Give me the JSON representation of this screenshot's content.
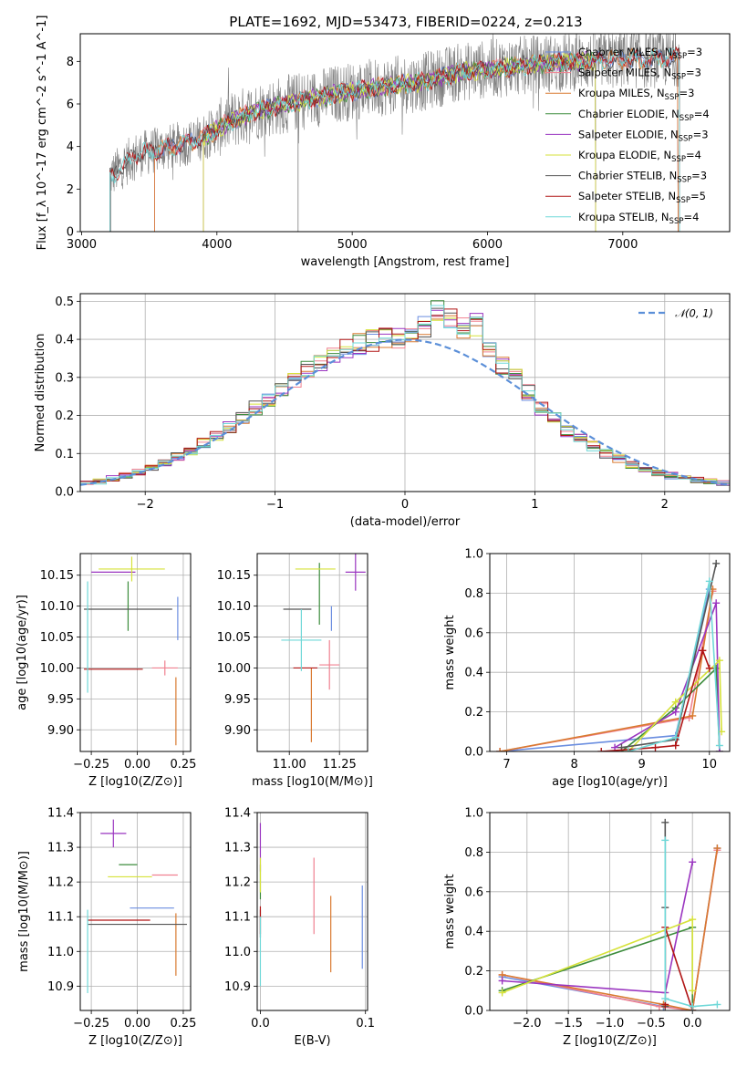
{
  "figure": {
    "title": "PLATE=1692, MJD=53473, FIBERID=0224, z=0.213"
  },
  "colors": {
    "Chabrier MILES": "#6b8ee0",
    "Salpeter MILES": "#f08090",
    "Kroupa MILES": "#d97a30",
    "Chabrier ELODIE": "#3c8c3c",
    "Salpeter ELODIE": "#9a35c0",
    "Kroupa ELODIE": "#d6e23a",
    "Chabrier STELIB": "#555555",
    "Salpeter STELIB": "#b01515",
    "Kroupa STELIB": "#6fd8d8",
    "normal": "#5b8fd8",
    "data": "#7f7f7f"
  },
  "chart_data": [
    {
      "id": "spectrum",
      "type": "line",
      "title": "PLATE=1692, MJD=53473, FIBERID=0224, z=0.213",
      "xlabel": "wavelength [Angstrom, rest frame]",
      "ylabel": "Flux [f_λ 10^-17 erg cm^-2 s^-1 A^-1]",
      "xlim": [
        2990,
        7790
      ],
      "ylim": [
        0,
        9.3
      ],
      "xticks": [
        3000,
        4000,
        5000,
        6000,
        7000
      ],
      "yticks": [
        0,
        2,
        4,
        6,
        8
      ],
      "grid": false,
      "legend_position": "right",
      "series": [
        {
          "name": "Chabrier MILES, N_SSP=3",
          "sub": "SSP",
          "pre": "Chabrier MILES, N",
          "post": "=3"
        },
        {
          "name": "Salpeter MILES, N_SSP=3",
          "sub": "SSP",
          "pre": "Salpeter MILES, N",
          "post": "=3"
        },
        {
          "name": "Kroupa MILES, N_SSP=3",
          "sub": "SSP",
          "pre": "Kroupa MILES, N",
          "post": "=3"
        },
        {
          "name": "Chabrier ELODIE, N_SSP=4",
          "sub": "SSP",
          "pre": "Chabrier ELODIE, N",
          "post": "=4"
        },
        {
          "name": "Salpeter ELODIE, N_SSP=3",
          "sub": "SSP",
          "pre": "Salpeter ELODIE, N",
          "post": "=3"
        },
        {
          "name": "Kroupa ELODIE, N_SSP=4",
          "sub": "SSP",
          "pre": "Kroupa ELODIE, N",
          "post": "=4"
        },
        {
          "name": "Chabrier STELIB, N_SSP=3",
          "sub": "SSP",
          "pre": "Chabrier STELIB, N",
          "post": "=3"
        },
        {
          "name": "Salpeter STELIB, N_SSP=5",
          "sub": "SSP",
          "pre": "Salpeter STELIB, N",
          "post": "=5"
        },
        {
          "name": "Kroupa STELIB, N_SSP=4",
          "sub": "SSP",
          "pre": "Kroupa STELIB, N",
          "post": "=4"
        }
      ],
      "continuum": [
        [
          3210,
          2.6
        ],
        [
          3400,
          3.6
        ],
        [
          3600,
          3.9
        ],
        [
          3800,
          4.2
        ],
        [
          3950,
          4.6
        ],
        [
          4100,
          5.2
        ],
        [
          4300,
          5.7
        ],
        [
          4600,
          6.1
        ],
        [
          4900,
          6.5
        ],
        [
          5200,
          6.8
        ],
        [
          5500,
          7.0
        ],
        [
          5800,
          7.5
        ],
        [
          6100,
          7.7
        ],
        [
          6400,
          7.9
        ],
        [
          6700,
          8.0
        ],
        [
          7000,
          8.1
        ],
        [
          7200,
          8.1
        ],
        [
          7400,
          8.2
        ]
      ]
    },
    {
      "id": "residuals",
      "type": "step",
      "xlabel": "(data-model)/error",
      "ylabel": "Normed distribution",
      "xlim": [
        -2.5,
        2.5
      ],
      "ylim": [
        0,
        0.52
      ],
      "xticks": [
        -2,
        -1,
        0,
        1,
        2
      ],
      "yticks": [
        0.0,
        0.1,
        0.2,
        0.3,
        0.4,
        0.5
      ],
      "grid": true,
      "legend": "𝒩(0, 1)",
      "legend_position": "top-right",
      "bins": [
        -2.5,
        -2.4,
        -2.3,
        -2.2,
        -2.1,
        -2.0,
        -1.9,
        -1.8,
        -1.7,
        -1.6,
        -1.5,
        -1.4,
        -1.3,
        -1.2,
        -1.1,
        -1.0,
        -0.9,
        -0.8,
        -0.7,
        -0.6,
        -0.5,
        -0.4,
        -0.3,
        -0.2,
        -0.1,
        0.0,
        0.1,
        0.2,
        0.3,
        0.4,
        0.5,
        0.6,
        0.7,
        0.8,
        0.9,
        1.0,
        1.1,
        1.2,
        1.3,
        1.4,
        1.5,
        1.6,
        1.7,
        1.8,
        1.9,
        2.0,
        2.1,
        2.2,
        2.3,
        2.4
      ],
      "histogram": [
        0.022,
        0.028,
        0.034,
        0.042,
        0.052,
        0.062,
        0.075,
        0.092,
        0.108,
        0.128,
        0.148,
        0.17,
        0.196,
        0.22,
        0.244,
        0.27,
        0.296,
        0.318,
        0.34,
        0.36,
        0.375,
        0.388,
        0.396,
        0.402,
        0.405,
        0.4,
        0.43,
        0.47,
        0.46,
        0.43,
        0.44,
        0.38,
        0.33,
        0.3,
        0.26,
        0.22,
        0.19,
        0.16,
        0.14,
        0.12,
        0.1,
        0.085,
        0.07,
        0.058,
        0.05,
        0.042,
        0.036,
        0.03,
        0.026,
        0.022
      ]
    },
    {
      "id": "age-vs-Z",
      "type": "errorbar",
      "xlabel": "Z [log10(Z/Z⊙)]",
      "ylabel": "age [log10(age/yr)]",
      "xlim": [
        -0.31,
        0.29
      ],
      "ylim": [
        9.865,
        10.185
      ],
      "xticks": [
        -0.25,
        0.0,
        0.25
      ],
      "yticks": [
        9.9,
        9.95,
        10.0,
        10.05,
        10.1,
        10.15
      ],
      "grid": true,
      "points": [
        {
          "model": "Chabrier MILES",
          "x": 0.22,
          "xerr": 0.0,
          "y": 10.08,
          "yerr": 0.035
        },
        {
          "model": "Salpeter MILES",
          "x": 0.15,
          "xerr": 0.07,
          "y": 10.0,
          "yerr": 0.012
        },
        {
          "model": "Kroupa MILES",
          "x": 0.21,
          "xerr": 0.0,
          "y": 9.93,
          "yerr": 0.055
        },
        {
          "model": "Chabrier ELODIE",
          "x": -0.05,
          "xerr": 0.0,
          "y": 10.1,
          "yerr": 0.04
        },
        {
          "model": "Salpeter ELODIE",
          "x": -0.13,
          "xerr": 0.12,
          "y": 10.155,
          "yerr": 0.0
        },
        {
          "model": "Kroupa ELODIE",
          "x": -0.03,
          "xerr": 0.18,
          "y": 10.16,
          "yerr": 0.02
        },
        {
          "model": "Chabrier STELIB",
          "x": -0.05,
          "xerr": 0.24,
          "y": 10.095,
          "yerr": 0.0
        },
        {
          "model": "Salpeter STELIB",
          "x": -0.13,
          "xerr": 0.16,
          "y": 9.998,
          "yerr": 0.0
        },
        {
          "model": "Kroupa STELIB",
          "x": -0.27,
          "xerr": 0.0,
          "y": 10.05,
          "yerr": 0.09
        }
      ]
    },
    {
      "id": "age-vs-mass",
      "type": "errorbar",
      "xlabel": "mass [log10(M/M⊙)]",
      "xlim": [
        10.84,
        11.39
      ],
      "ylim": [
        9.865,
        10.185
      ],
      "xticks": [
        11.0,
        11.25
      ],
      "yticks": [
        9.9,
        9.95,
        10.0,
        10.05,
        10.1,
        10.15
      ],
      "grid": true,
      "points": [
        {
          "model": "Chabrier MILES",
          "x": 11.21,
          "xerr": 0.0,
          "y": 10.08,
          "yerr": 0.02
        },
        {
          "model": "Salpeter MILES",
          "x": 11.2,
          "xerr": 0.05,
          "y": 10.005,
          "yerr": 0.04
        },
        {
          "model": "Kroupa MILES",
          "x": 11.11,
          "xerr": 0.0,
          "y": 9.94,
          "yerr": 0.06
        },
        {
          "model": "Chabrier ELODIE",
          "x": 11.15,
          "xerr": 0.0,
          "y": 10.12,
          "yerr": 0.05
        },
        {
          "model": "Salpeter ELODIE",
          "x": 11.33,
          "xerr": 0.05,
          "y": 10.155,
          "yerr": 0.03
        },
        {
          "model": "Kroupa ELODIE",
          "x": 11.13,
          "xerr": 0.1,
          "y": 10.16,
          "yerr": 0.0
        },
        {
          "model": "Chabrier STELIB",
          "x": 11.04,
          "xerr": 0.07,
          "y": 10.095,
          "yerr": 0.0
        },
        {
          "model": "Salpeter STELIB",
          "x": 11.08,
          "xerr": 0.06,
          "y": 10.0,
          "yerr": 0.0
        },
        {
          "model": "Kroupa STELIB",
          "x": 11.06,
          "xerr": 0.1,
          "y": 10.045,
          "yerr": 0.05
        }
      ]
    },
    {
      "id": "mass-weight-vs-age",
      "type": "line",
      "xlabel": "age [log10(age/yr)]",
      "ylabel": "mass weight",
      "xlim": [
        6.75,
        10.3
      ],
      "ylim": [
        0,
        1.0
      ],
      "xticks": [
        7,
        8,
        9,
        10
      ],
      "yticks": [
        0.0,
        0.2,
        0.4,
        0.6,
        0.8,
        1.0
      ],
      "grid": true,
      "series": [
        {
          "model": "Chabrier MILES",
          "x": [
            6.9,
            9.5,
            10.0
          ],
          "y": [
            0.0,
            0.08,
            0.82
          ]
        },
        {
          "model": "Salpeter MILES",
          "x": [
            6.9,
            9.7,
            10.05
          ],
          "y": [
            0.0,
            0.17,
            0.81
          ]
        },
        {
          "model": "Kroupa MILES",
          "x": [
            6.9,
            9.75,
            10.05
          ],
          "y": [
            0.0,
            0.18,
            0.82
          ]
        },
        {
          "model": "Chabrier ELODIE",
          "x": [
            8.7,
            9.5,
            10.1,
            10.15
          ],
          "y": [
            0.0,
            0.22,
            0.42,
            0.0
          ]
        },
        {
          "model": "Salpeter ELODIE",
          "x": [
            8.6,
            9.5,
            10.1,
            10.15
          ],
          "y": [
            0.02,
            0.2,
            0.75,
            0.0
          ]
        },
        {
          "model": "Kroupa ELODIE",
          "x": [
            8.8,
            9.5,
            10.15,
            10.18
          ],
          "y": [
            0.0,
            0.25,
            0.46,
            0.1
          ]
        },
        {
          "model": "Chabrier STELIB",
          "x": [
            8.7,
            9.5,
            10.1
          ],
          "y": [
            0.02,
            0.06,
            0.95
          ]
        },
        {
          "model": "Salpeter STELIB",
          "x": [
            8.4,
            9.2,
            9.5,
            9.9,
            10.0
          ],
          "y": [
            0.0,
            0.02,
            0.03,
            0.51,
            0.42
          ]
        },
        {
          "model": "Kroupa STELIB",
          "x": [
            8.8,
            9.5,
            10.0,
            10.15
          ],
          "y": [
            0.0,
            0.07,
            0.86,
            0.03
          ]
        }
      ]
    },
    {
      "id": "mass-vs-Z",
      "type": "errorbar",
      "xlabel": "Z [log10(Z/Z⊙)]",
      "ylabel": "mass [log10(M/M⊙)]",
      "xlim": [
        -0.31,
        0.29
      ],
      "ylim": [
        10.83,
        11.4
      ],
      "xticks": [
        -0.25,
        0.0,
        0.25
      ],
      "yticks": [
        10.9,
        11.0,
        11.1,
        11.2,
        11.3,
        11.4
      ],
      "grid": true,
      "points": [
        {
          "model": "Chabrier MILES",
          "x": 0.08,
          "xerr": 0.12,
          "y": 11.125,
          "yerr": 0.0
        },
        {
          "model": "Salpeter MILES",
          "x": 0.15,
          "xerr": 0.07,
          "y": 11.22,
          "yerr": 0.0
        },
        {
          "model": "Kroupa MILES",
          "x": 0.21,
          "xerr": 0.0,
          "y": 11.02,
          "yerr": 0.09
        },
        {
          "model": "Chabrier ELODIE",
          "x": -0.05,
          "xerr": 0.05,
          "y": 11.25,
          "yerr": 0.0
        },
        {
          "model": "Salpeter ELODIE",
          "x": -0.13,
          "xerr": 0.07,
          "y": 11.34,
          "yerr": 0.04
        },
        {
          "model": "Kroupa ELODIE",
          "x": -0.04,
          "xerr": 0.12,
          "y": 11.215,
          "yerr": 0.0
        },
        {
          "model": "Chabrier STELIB",
          "x": 0.0,
          "xerr": 0.27,
          "y": 11.078,
          "yerr": 0.0
        },
        {
          "model": "Salpeter STELIB",
          "x": -0.1,
          "xerr": 0.17,
          "y": 11.09,
          "yerr": 0.0
        },
        {
          "model": "Kroupa STELIB",
          "x": -0.27,
          "xerr": 0.0,
          "y": 11.0,
          "yerr": 0.12
        }
      ]
    },
    {
      "id": "mass-vs-ebv",
      "type": "errorbar",
      "xlabel": "E(B-V)",
      "xlim": [
        -0.003,
        0.102
      ],
      "ylim": [
        10.83,
        11.4
      ],
      "xticks": [
        0.0,
        0.1
      ],
      "yticks": [
        10.9,
        11.0,
        11.1,
        11.2,
        11.3,
        11.4
      ],
      "grid": true,
      "points": [
        {
          "model": "Chabrier MILES",
          "x": 0.097,
          "xerr": 0.0,
          "y": 11.07,
          "yerr": 0.12
        },
        {
          "model": "Salpeter MILES",
          "x": 0.051,
          "xerr": 0.0,
          "y": 11.16,
          "yerr": 0.11
        },
        {
          "model": "Kroupa MILES",
          "x": 0.067,
          "xerr": 0.0,
          "y": 11.05,
          "yerr": 0.11
        },
        {
          "model": "Chabrier ELODIE",
          "x": 0.0,
          "xerr": 0.0,
          "y": 11.2,
          "yerr": 0.05
        },
        {
          "model": "Salpeter ELODIE",
          "x": 0.0,
          "xerr": 0.0,
          "y": 11.3,
          "yerr": 0.07
        },
        {
          "model": "Kroupa ELODIE",
          "x": 0.0,
          "xerr": 0.0,
          "y": 11.22,
          "yerr": 0.05
        },
        {
          "model": "Chabrier STELIB",
          "x": 0.0,
          "xerr": 0.0,
          "y": 11.08,
          "yerr": 0.04
        },
        {
          "model": "Salpeter STELIB",
          "x": 0.0,
          "xerr": 0.0,
          "y": 11.09,
          "yerr": 0.04
        },
        {
          "model": "Kroupa STELIB",
          "x": 0.0,
          "xerr": 0.0,
          "y": 11.0,
          "yerr": 0.1
        }
      ]
    },
    {
      "id": "mass-weight-vs-Z",
      "type": "line",
      "xlabel": "Z [log10(Z/Z⊙)]",
      "ylabel": "mass weight",
      "xlim": [
        -2.45,
        0.45
      ],
      "ylim": [
        0,
        1.0
      ],
      "xticks": [
        -2.0,
        -1.5,
        -1.0,
        -0.5,
        0.0
      ],
      "yticks": [
        0.0,
        0.2,
        0.4,
        0.6,
        0.8,
        1.0
      ],
      "grid": true,
      "series": [
        {
          "model": "Chabrier MILES",
          "x": [
            -2.3,
            -0.35,
            0.0,
            0.3
          ],
          "y": [
            0.17,
            0.02,
            0.0,
            0.82
          ]
        },
        {
          "model": "Salpeter MILES",
          "x": [
            -2.3,
            -0.4,
            0.0,
            0.3
          ],
          "y": [
            0.18,
            0.02,
            0.0,
            0.81
          ]
        },
        {
          "model": "Kroupa MILES",
          "x": [
            -2.3,
            -0.35,
            0.0,
            0.3
          ],
          "y": [
            0.18,
            0.03,
            0.0,
            0.82
          ]
        },
        {
          "model": "Chabrier ELODIE",
          "x": [
            -2.3,
            0.0,
            0.0
          ],
          "y": [
            0.1,
            0.42,
            0.0
          ]
        },
        {
          "model": "Salpeter ELODIE",
          "x": [
            -2.3,
            -0.33,
            0.0
          ],
          "y": [
            0.15,
            0.09,
            0.75
          ]
        },
        {
          "model": "Kroupa ELODIE",
          "x": [
            -2.3,
            0.0,
            0.0
          ],
          "y": [
            0.09,
            0.46,
            0.1
          ]
        },
        {
          "model": "Chabrier STELIB",
          "x": [
            -0.33,
            -0.33,
            -0.33
          ],
          "y": [
            0.95,
            0.52,
            0.02
          ]
        },
        {
          "model": "Salpeter STELIB",
          "x": [
            -0.33,
            -0.33,
            0.0
          ],
          "y": [
            0.03,
            0.42,
            0.0
          ]
        },
        {
          "model": "Kroupa STELIB",
          "x": [
            -0.33,
            -0.33,
            0.0,
            0.3
          ],
          "y": [
            0.86,
            0.06,
            0.02,
            0.03
          ]
        }
      ]
    }
  ]
}
